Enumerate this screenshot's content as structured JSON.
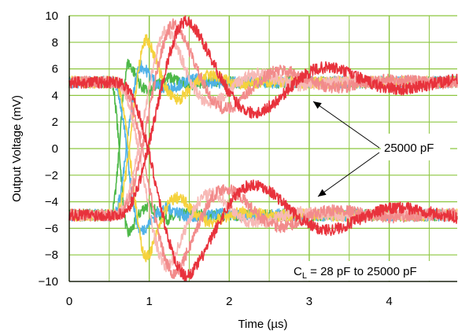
{
  "chart_data": {
    "type": "line",
    "title": "",
    "xlabel": "Time (µs)",
    "ylabel": "Output Voltage (mV)",
    "xlim": [
      0,
      4.85
    ],
    "ylim": [
      -10,
      10
    ],
    "x_ticks": [
      "0",
      "1",
      "2",
      "3",
      "4"
    ],
    "y_ticks": [
      "−10",
      "−8",
      "−6",
      "−4",
      "−2",
      "0",
      "2",
      "4",
      "6",
      "8",
      "10"
    ],
    "grid": true,
    "grid_color": "#8cc63f",
    "plot_background": "#ffffff",
    "series": [
      {
        "color": "#4db848",
        "start_time": 0.52,
        "rise_time": 0.22,
        "freq_mhz": 1.9,
        "damping": 3.0,
        "overshoot": 1.4
      },
      {
        "color": "#4fb2e8",
        "start_time": 0.55,
        "rise_time": 0.35,
        "freq_mhz": 1.4,
        "damping": 2.6,
        "overshoot": 1.2
      },
      {
        "color": "#f5d23c",
        "start_time": 0.57,
        "rise_time": 0.4,
        "freq_mhz": 1.2,
        "damping": 2.3,
        "overshoot": 3.2
      },
      {
        "color": "#f7b9b6",
        "start_time": 0.58,
        "rise_time": 0.65,
        "freq_mhz": 0.85,
        "damping": 1.6,
        "overshoot": 3.9
      },
      {
        "color": "#f28b8b",
        "start_time": 0.6,
        "rise_time": 0.72,
        "freq_mhz": 0.72,
        "damping": 1.2,
        "overshoot": 4.4
      },
      {
        "color": "#e8323c",
        "start_time": 0.62,
        "rise_time": 0.85,
        "freq_mhz": 0.55,
        "damping": 0.8,
        "overshoot": 4.6
      }
    ],
    "upper_baseline_mv": 5,
    "lower_baseline_mv": -5,
    "annotations": {
      "load_label": "25000 pF",
      "range_label_prefix": "C",
      "range_label_sub": "L",
      "range_label_suffix": " = 28 pF to 25000 pF"
    }
  }
}
